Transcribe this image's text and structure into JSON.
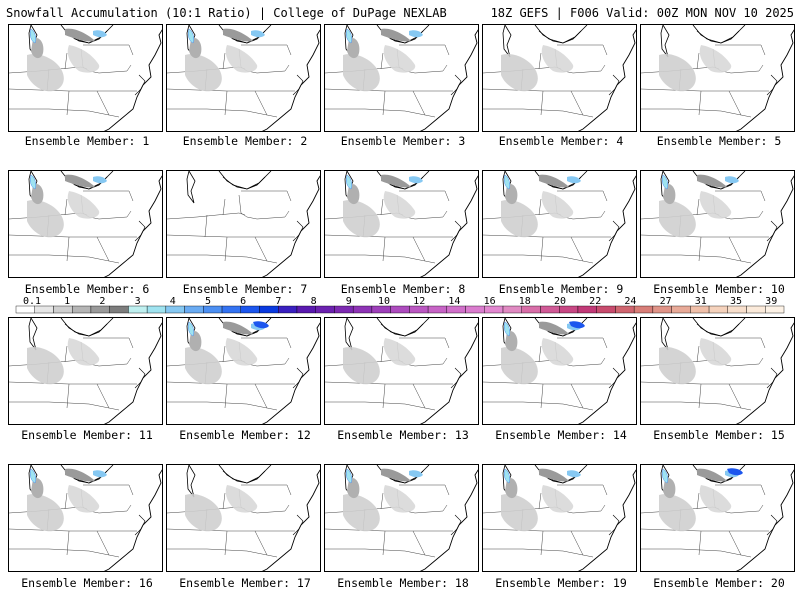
{
  "header": {
    "left": "Snowfall Accumulation (10:1 Ratio) | College of DuPage NEXLAB",
    "right": "18Z GEFS | F006 Valid: 00Z MON NOV 10 2025"
  },
  "caption_prefix": "Ensemble Member:",
  "members": [
    {
      "num": "1",
      "snow": 2
    },
    {
      "num": "2",
      "snow": 2
    },
    {
      "num": "3",
      "snow": 2
    },
    {
      "num": "4",
      "snow": 1
    },
    {
      "num": "5",
      "snow": 1
    },
    {
      "num": "6",
      "snow": 2
    },
    {
      "num": "7",
      "snow": 0
    },
    {
      "num": "8",
      "snow": 2
    },
    {
      "num": "9",
      "snow": 2
    },
    {
      "num": "10",
      "snow": 2
    },
    {
      "num": "11",
      "snow": 1
    },
    {
      "num": "12",
      "snow": 3
    },
    {
      "num": "13",
      "snow": 1
    },
    {
      "num": "14",
      "snow": 3
    },
    {
      "num": "15",
      "snow": 1
    },
    {
      "num": "16",
      "snow": 2
    },
    {
      "num": "17",
      "snow": 1
    },
    {
      "num": "18",
      "snow": 2
    },
    {
      "num": "19",
      "snow": 2
    },
    {
      "num": "20",
      "snow": 3
    }
  ],
  "legend": {
    "labels": [
      "0.1",
      "1",
      "2",
      "3",
      "4",
      "5",
      "6",
      "7",
      "8",
      "9",
      "10",
      "12",
      "14",
      "16",
      "18",
      "20",
      "22",
      "24",
      "27",
      "31",
      "35",
      "39"
    ],
    "colors": [
      "#ffffff",
      "#e6e6e6",
      "#cfcfcf",
      "#b5b5b5",
      "#9a9a9a",
      "#7d7d7d",
      "#bff0f0",
      "#9fe3f0",
      "#86c8f2",
      "#6aabf2",
      "#4c8ff2",
      "#3473f2",
      "#1c56ee",
      "#0a3ae0",
      "#3a20c0",
      "#5a1ab0",
      "#6c22b0",
      "#7d2ab2",
      "#8e34b6",
      "#9e40ba",
      "#ad4cbe",
      "#bb58c2",
      "#c764c6",
      "#d170ca",
      "#da7cce",
      "#e288d0",
      "#e08ac2",
      "#d86ea8",
      "#d05a96",
      "#c84884",
      "#c23a78",
      "#c84c6e",
      "#d06670",
      "#d87e78",
      "#e09488",
      "#e8aa98",
      "#f0c0aa",
      "#f5d2bc",
      "#f8dfcc",
      "#fbeada",
      "#fdf2e6"
    ]
  }
}
